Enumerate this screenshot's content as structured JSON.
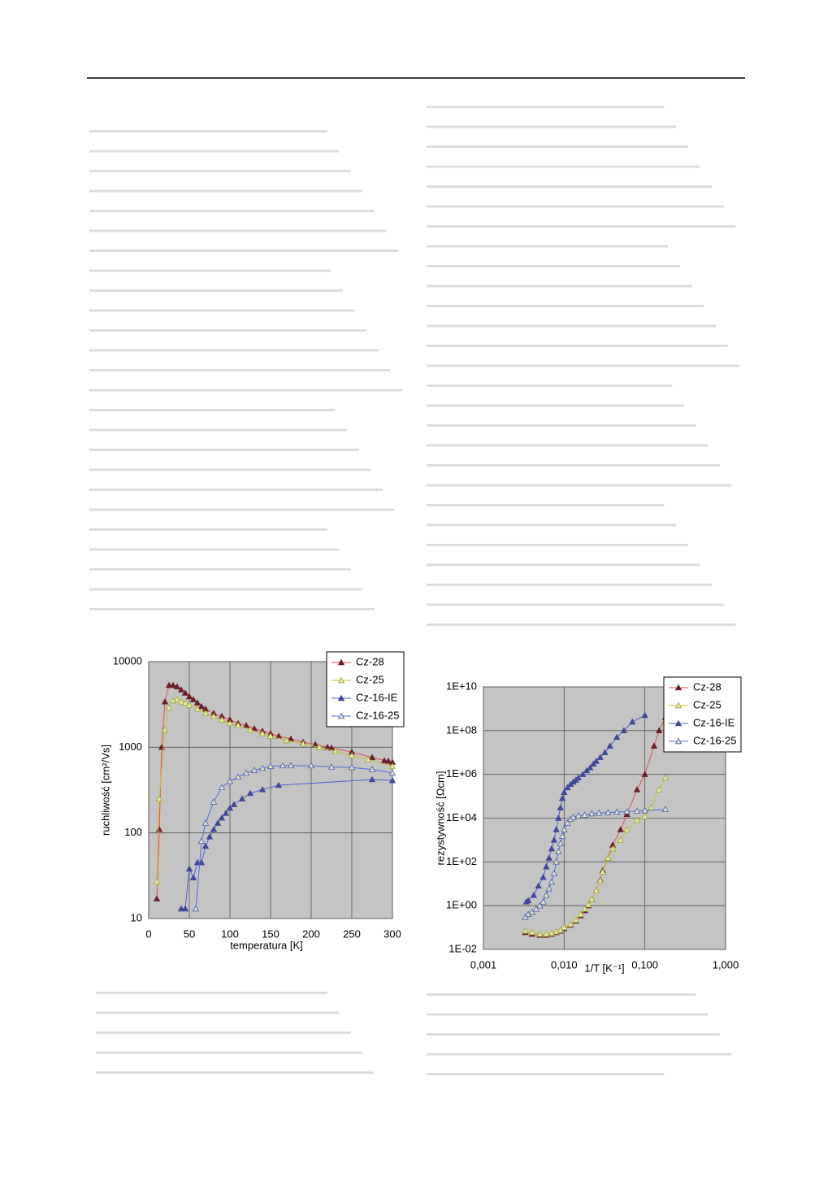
{
  "chart_data": [
    {
      "type": "line",
      "x_label": "temperatura [K]",
      "y_label": "ruchliwość [cm²/Vs]",
      "xlim": [
        0,
        300
      ],
      "xticks": [
        0,
        50,
        100,
        150,
        200,
        250,
        300
      ],
      "ylim": [
        10,
        10000
      ],
      "yticks": [
        10,
        100,
        1000,
        10000
      ],
      "y_log": true,
      "grid": true,
      "legend": "top-right",
      "series": [
        {
          "name": "Cz-28",
          "color": "#e05050",
          "marker_color": "#6b1f2a",
          "filled": true,
          "x": [
            10,
            13,
            16,
            20,
            25,
            30,
            35,
            40,
            45,
            50,
            55,
            60,
            65,
            70,
            80,
            90,
            100,
            110,
            120,
            130,
            140,
            150,
            160,
            175,
            190,
            205,
            220,
            225,
            250,
            275,
            290,
            295,
            300
          ],
          "values": [
            17,
            110,
            1000,
            3400,
            5300,
            5300,
            5100,
            4700,
            4300,
            3900,
            3600,
            3300,
            3000,
            2800,
            2500,
            2300,
            2100,
            1900,
            1800,
            1650,
            1550,
            1450,
            1350,
            1250,
            1150,
            1080,
            1000,
            980,
            880,
            760,
            700,
            690,
            670
          ]
        },
        {
          "name": "Cz-25",
          "color": "#c8c040",
          "marker_color": "#9aaa30",
          "filled": false,
          "x": [
            10,
            13,
            20,
            25,
            30,
            35,
            40,
            45,
            50,
            60,
            70,
            80,
            90,
            100,
            110,
            125,
            140,
            150,
            170,
            190,
            210,
            230,
            250,
            270,
            300
          ],
          "values": [
            27,
            250,
            1600,
            2900,
            3500,
            3600,
            3400,
            3300,
            3100,
            2800,
            2500,
            2300,
            2100,
            1900,
            1800,
            1600,
            1450,
            1350,
            1200,
            1100,
            1000,
            900,
            800,
            720,
            600
          ]
        },
        {
          "name": "Cz-16-IE",
          "color": "#5060d0",
          "marker_color": "#404898",
          "filled": true,
          "x": [
            40,
            45,
            50,
            55,
            60,
            65,
            70,
            75,
            80,
            85,
            90,
            95,
            100,
            105,
            115,
            125,
            140,
            160,
            275,
            300
          ],
          "values": [
            13,
            13,
            38,
            30,
            45,
            45,
            70,
            90,
            110,
            130,
            150,
            170,
            195,
            215,
            250,
            290,
            320,
            360,
            420,
            410
          ]
        },
        {
          "name": "Cz-16-25",
          "color": "#5070e0",
          "marker_color": "#4058c8",
          "filled": false,
          "x": [
            58,
            65,
            70,
            80,
            90,
            100,
            110,
            120,
            130,
            140,
            150,
            165,
            175,
            200,
            225,
            250,
            275,
            300
          ],
          "values": [
            13,
            80,
            130,
            230,
            340,
            400,
            450,
            500,
            540,
            570,
            600,
            610,
            610,
            610,
            590,
            580,
            550,
            500
          ]
        }
      ]
    },
    {
      "type": "line",
      "x_label": "1/T [K⁻¹]",
      "y_label": "rezystywność [Ωcm]",
      "xlim": [
        0.001,
        1
      ],
      "xticks": [
        {
          "value": 0.001,
          "label": "0,001"
        },
        {
          "value": 0.01,
          "label": "0,010"
        },
        {
          "value": 0.1,
          "label": "0,100"
        },
        {
          "value": 1,
          "label": "1,000"
        }
      ],
      "ylim": [
        0.01,
        10000000000
      ],
      "yticks": [
        {
          "value": 0.01,
          "label": "1E-02"
        },
        {
          "value": 1,
          "label": "1E+00"
        },
        {
          "value": 100,
          "label": "1E+02"
        },
        {
          "value": 10000,
          "label": "1E+04"
        },
        {
          "value": 1000000,
          "label": "1E+06"
        },
        {
          "value": 100000000,
          "label": "1E+08"
        },
        {
          "value": 10000000000,
          "label": "1E+10"
        }
      ],
      "x_log": true,
      "y_log": true,
      "grid": true,
      "legend": "top-right",
      "series": [
        {
          "name": "Cz-28",
          "color": "#e05050",
          "marker_color": "#6b1f2a",
          "filled": true,
          "x": [
            0.0033,
            0.004,
            0.005,
            0.006,
            0.007,
            0.008,
            0.009,
            0.01,
            0.012,
            0.014,
            0.016,
            0.018,
            0.02,
            0.022,
            0.025,
            0.028,
            0.03,
            0.035,
            0.04,
            0.05,
            0.06,
            0.08,
            0.1,
            0.13,
            0.15,
            0.18
          ],
          "values": [
            0.06,
            0.05,
            0.045,
            0.045,
            0.05,
            0.06,
            0.07,
            0.09,
            0.13,
            0.2,
            0.35,
            0.6,
            1,
            2,
            5,
            15,
            40,
            150,
            600,
            3000,
            15000,
            200000,
            1000000,
            20000000,
            100000000,
            400000000
          ]
        },
        {
          "name": "Cz-25",
          "color": "#c8c040",
          "marker_color": "#9aaa30",
          "filled": false,
          "x": [
            0.0033,
            0.004,
            0.005,
            0.006,
            0.007,
            0.008,
            0.009,
            0.01,
            0.012,
            0.014,
            0.016,
            0.018,
            0.02,
            0.022,
            0.025,
            0.028,
            0.03,
            0.035,
            0.04,
            0.05,
            0.06,
            0.08,
            0.1,
            0.12,
            0.15,
            0.18
          ],
          "values": [
            0.07,
            0.06,
            0.05,
            0.05,
            0.055,
            0.065,
            0.075,
            0.1,
            0.14,
            0.22,
            0.4,
            0.7,
            1.1,
            2,
            5,
            14,
            35,
            150,
            400,
            1000,
            3000,
            8000,
            12000,
            30000,
            200000,
            700000
          ]
        },
        {
          "name": "Cz-16-IE",
          "color": "#5060d0",
          "marker_color": "#404898",
          "filled": true,
          "x": [
            0.0034,
            0.0036,
            0.0042,
            0.0048,
            0.0055,
            0.006,
            0.0065,
            0.007,
            0.0075,
            0.008,
            0.0085,
            0.009,
            0.0095,
            0.01,
            0.011,
            0.012,
            0.013,
            0.014,
            0.015,
            0.017,
            0.019,
            0.021,
            0.023,
            0.025,
            0.028,
            0.032,
            0.037,
            0.045,
            0.055,
            0.07,
            0.1
          ],
          "values": [
            1.5,
            1.7,
            3,
            8,
            20,
            60,
            150,
            400,
            1000,
            3000,
            10000,
            30000,
            80000,
            150000,
            250000,
            350000,
            450000,
            550000,
            700000,
            1000000,
            1500000,
            2000000,
            3000000,
            4000000,
            6000000,
            10000000,
            20000000,
            50000000,
            100000000,
            250000000,
            500000000
          ]
        },
        {
          "name": "Cz-16-25",
          "color": "#5070e0",
          "marker_color": "#4058c8",
          "filled": false,
          "x": [
            0.0033,
            0.0036,
            0.004,
            0.0045,
            0.005,
            0.0055,
            0.006,
            0.0065,
            0.007,
            0.0075,
            0.008,
            0.0085,
            0.009,
            0.0095,
            0.01,
            0.011,
            0.012,
            0.013,
            0.015,
            0.018,
            0.022,
            0.027,
            0.035,
            0.045,
            0.06,
            0.08,
            0.1,
            0.18
          ],
          "values": [
            0.3,
            0.4,
            0.5,
            0.7,
            1,
            1.5,
            3,
            6,
            12,
            30,
            100,
            300,
            700,
            1500,
            3000,
            6000,
            9000,
            11000,
            13000,
            14000,
            16000,
            17000,
            18000,
            19000,
            20000,
            21000,
            22000,
            25000
          ]
        }
      ]
    }
  ]
}
